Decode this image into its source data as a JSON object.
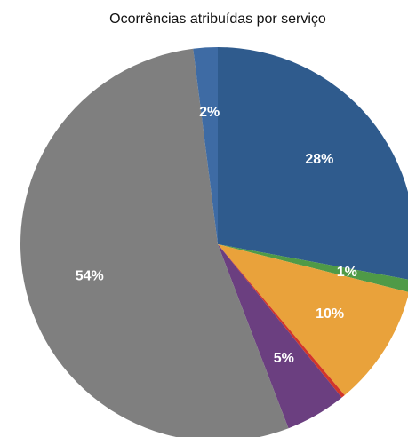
{
  "chart_data": {
    "type": "pie",
    "title": "Ocorrências atribuídas por serviço",
    "values": [
      28,
      1,
      10,
      0.3,
      5,
      54,
      2
    ],
    "value_labels": [
      "28%",
      "1%",
      "10%",
      null,
      "5%",
      "54%",
      "2%"
    ],
    "colors": [
      "#2f5b8d",
      "#4f9a47",
      "#e9a23b",
      "#d2352a",
      "#6b3f80",
      "#7f7f7f",
      "#3e6ba4"
    ]
  }
}
